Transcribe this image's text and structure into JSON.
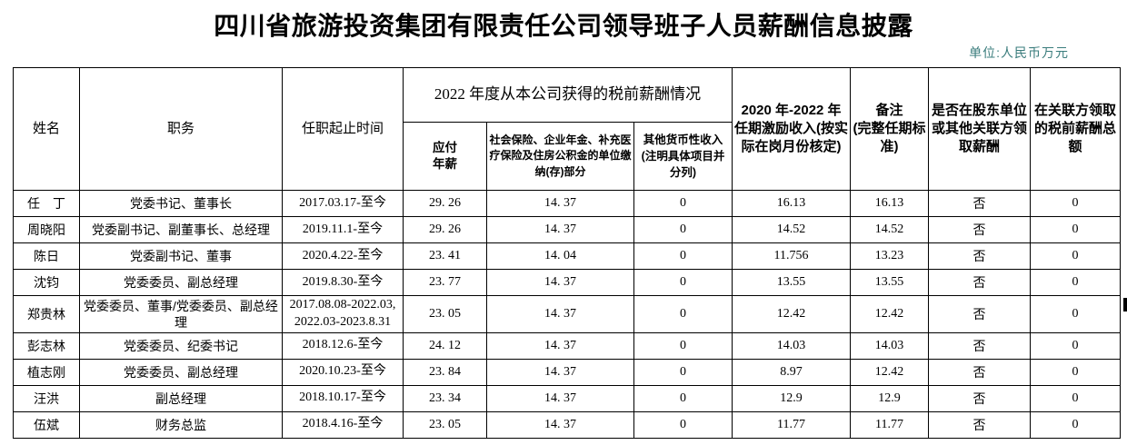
{
  "page": {
    "title": "四川省旅游投资集团有限责任公司领导班子人员薪酬信息披露",
    "unit_label": "单位:人民币万元",
    "unit_color": "#3a7c7c"
  },
  "table": {
    "headers": {
      "name": "姓名",
      "position": "职务",
      "term": "任职起止时间",
      "salary_group": "2022 年度从本公司获得的税前薪酬情况",
      "annual_salary": "应付\n年薪",
      "insurance": "社会保险、企业年金、补充医疗保险及住房公积金的单位缴纳(存)部分",
      "other_income": "其他货币性收入(注明具体项目并分列)",
      "incentive": "2020 年-2022 年任期激励收入(按实际在岗月份核定)",
      "remark": "备注\n(完整任期标准)",
      "related_party": "是否在股东单位或其他关联方领取薪酬",
      "related_salary": "在关联方领取的税前薪酬总额"
    },
    "rows": [
      {
        "name": "任　丁",
        "position": "党委书记、董事长",
        "term": "2017.03.17-至今",
        "annual": "29. 26",
        "insurance": "14. 37",
        "other": "0",
        "incentive": "16.13",
        "remark": "16.13",
        "related": "否",
        "related_total": "0"
      },
      {
        "name": "周晓阳",
        "position": "党委副书记、副董事长、总经理",
        "term": "2019.11.1-至今",
        "annual": "29. 26",
        "insurance": "14. 37",
        "other": "0",
        "incentive": "14.52",
        "remark": "14.52",
        "related": "否",
        "related_total": "0"
      },
      {
        "name": "陈日",
        "position": "党委副书记、董事",
        "term": "2020.4.22-至今",
        "annual": "23. 41",
        "insurance": "14. 04",
        "other": "0",
        "incentive": "11.756",
        "remark": "13.23",
        "related": "否",
        "related_total": "0"
      },
      {
        "name": "沈钧",
        "position": "党委委员、副总经理",
        "term": "2019.8.30-至今",
        "annual": "23. 77",
        "insurance": "14. 37",
        "other": "0",
        "incentive": "13.55",
        "remark": "13.55",
        "related": "否",
        "related_total": "0"
      },
      {
        "name": "郑贵林",
        "position": "党委委员、董事/党委委员、副总经理",
        "term": "2017.08.08-2022.03,\n2022.03-2023.8.31",
        "annual": "23. 05",
        "insurance": "14. 37",
        "other": "0",
        "incentive": "12.42",
        "remark": "12.42",
        "related": "否",
        "related_total": "0"
      },
      {
        "name": "彭志林",
        "position": "党委委员、纪委书记",
        "term": "2018.12.6-至今",
        "annual": "24. 12",
        "insurance": "14. 37",
        "other": "0",
        "incentive": "14.03",
        "remark": "14.03",
        "related": "否",
        "related_total": "0"
      },
      {
        "name": "植志刚",
        "position": "党委委员、副总经理",
        "term": "2020.10.23-至今",
        "annual": "23. 84",
        "insurance": "14. 37",
        "other": "0",
        "incentive": "8.97",
        "remark": "12.42",
        "related": "否",
        "related_total": "0"
      },
      {
        "name": "汪洪",
        "position": "副总经理",
        "term": "2018.10.17-至今",
        "annual": "23. 34",
        "insurance": "14. 37",
        "other": "0",
        "incentive": "12.9",
        "remark": "12.9",
        "related": "否",
        "related_total": "0"
      },
      {
        "name": "伍斌",
        "position": "财务总监",
        "term": "2018.4.16-至今",
        "annual": "23. 05",
        "insurance": "14. 37",
        "other": "0",
        "incentive": "11.77",
        "remark": "11.77",
        "related": "否",
        "related_total": "0"
      }
    ]
  }
}
